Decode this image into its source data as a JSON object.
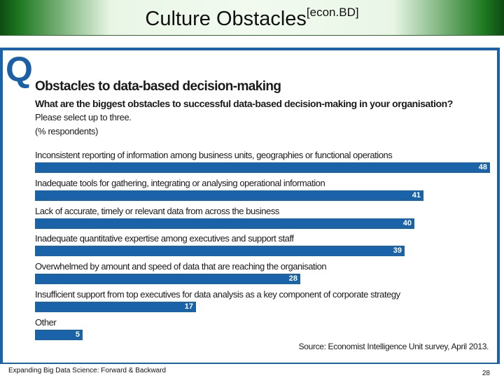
{
  "slide": {
    "title": "Culture Obstacles",
    "title_superscript": "[econ.BD]",
    "footer_text": "Expanding Big Data Science: Forward & Backward",
    "page_number": "28"
  },
  "colors": {
    "bar": "#1b63a8",
    "accent": "#1b5fa6",
    "title_bar": "#1f7a22"
  },
  "chart_data": {
    "type": "bar",
    "orientation": "horizontal",
    "q_marker": "Q",
    "title": "Obstacles to data-based decision-making",
    "question": "What are the biggest obstacles to successful data-based decision-making in your organisation?",
    "instruction": "Please select up to three.",
    "unit_note": "(% respondents)",
    "categories": [
      "Inconsistent reporting of information among business units, geographies or functional operations",
      "Inadequate tools for gathering, integrating or analysing operational information",
      "Lack of accurate, timely or relevant data from across the business",
      "Inadequate quantitative expertise among executives and support staff",
      "Overwhelmed by amount and speed of data that are reaching the organisation",
      "Insufficient support from top executives for data analysis as a key component of corporate strategy",
      "Other"
    ],
    "values": [
      48,
      41,
      40,
      39,
      28,
      17,
      5
    ],
    "value_labels": [
      "48",
      "41",
      "40",
      "39",
      "28",
      "17",
      "5"
    ],
    "xlim": [
      0,
      48
    ],
    "source": "Source: Economist Intelligence Unit survey, April 2013."
  }
}
